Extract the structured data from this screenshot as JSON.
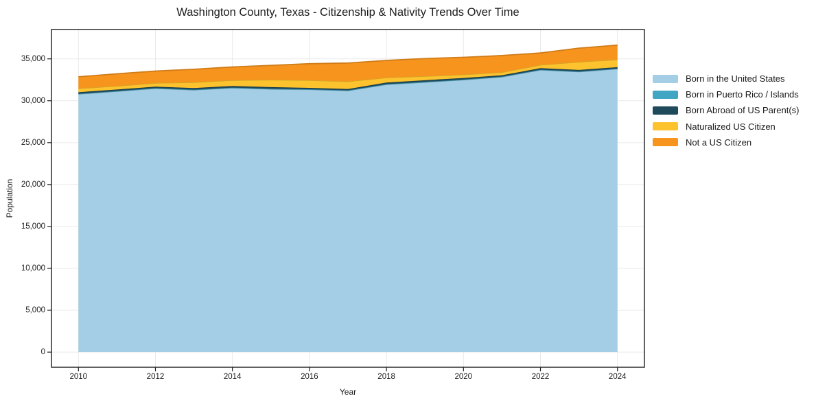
{
  "chart_data": {
    "type": "area",
    "stacked": true,
    "title": "Washington County, Texas - Citizenship & Nativity Trends Over Time",
    "xlabel": "Year",
    "ylabel": "Population",
    "x": [
      2010,
      2011,
      2012,
      2013,
      2014,
      2015,
      2016,
      2017,
      2018,
      2019,
      2020,
      2021,
      2022,
      2023,
      2024
    ],
    "series": [
      {
        "name": "Born in the United States",
        "color": "#A3CEE5",
        "values": [
          30800,
          31130,
          31480,
          31290,
          31540,
          31400,
          31345,
          31210,
          31950,
          32220,
          32500,
          32850,
          33680,
          33465,
          33815
        ]
      },
      {
        "name": "Born in Puerto Rico / Islands",
        "color": "#41A6C4",
        "values": [
          30,
          30,
          30,
          30,
          30,
          30,
          30,
          30,
          30,
          30,
          30,
          30,
          30,
          30,
          30
        ]
      },
      {
        "name": "Born Abroad of US Parent(s)",
        "color": "#1F4A5C",
        "values": [
          190,
          185,
          170,
          200,
          190,
          195,
          165,
          160,
          190,
          200,
          190,
          160,
          180,
          185,
          165
        ]
      },
      {
        "name": "Naturalized US Citizen",
        "color": "#FCC32F",
        "values": [
          460,
          420,
          440,
          690,
          690,
          875,
          910,
          910,
          600,
          480,
          410,
          360,
          390,
          960,
          905
        ]
      },
      {
        "name": "Not a US Citizen",
        "color": "#F7941E",
        "values": [
          1380,
          1450,
          1420,
          1550,
          1580,
          1720,
          1970,
          2190,
          2040,
          2110,
          2050,
          2000,
          1420,
          1640,
          1725
        ]
      }
    ],
    "x_ticks": {
      "values": [
        2010,
        2012,
        2014,
        2016,
        2018,
        2020,
        2022,
        2024
      ],
      "labels": [
        "2010",
        "2012",
        "2014",
        "2016",
        "2018",
        "2020",
        "2022",
        "2024"
      ]
    },
    "y_ticks": {
      "values": [
        0,
        5000,
        10000,
        15000,
        20000,
        25000,
        30000,
        35000
      ],
      "labels": [
        "0",
        "5,000",
        "10,000",
        "15,000",
        "20,000",
        "25,000",
        "30,000",
        "35,000"
      ]
    },
    "xlim": [
      2009.3,
      2024.7
    ],
    "ylim": [
      -1800,
      38500
    ],
    "grid": true,
    "legend_position": "right-outside"
  },
  "colors": {
    "background": "#ffffff",
    "grid": "#e9e9e9",
    "spine": "#1c1c1c",
    "text": "#1a1a1a"
  }
}
